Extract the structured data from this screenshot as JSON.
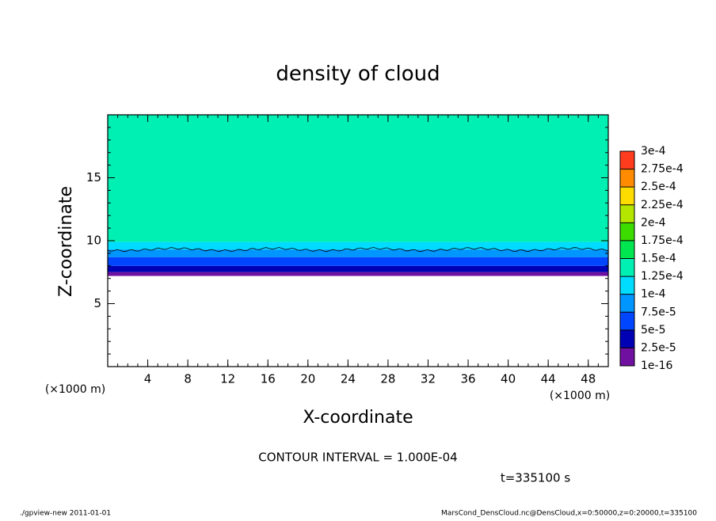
{
  "chart_data": {
    "type": "contour",
    "title": "density of cloud",
    "x_label": "X-coordinate",
    "y_label": "Z-coordinate",
    "x_unit": "(×1000 m)",
    "y_unit": "(×1000 m)",
    "annotation": "CONTOUR INTERVAL = 1.000E-04",
    "time_label": "t=335100 s",
    "footer_left": "./gpview-new   2011-01-01",
    "footer_right": "MarsCond_DensCloud.nc@DensCloud,x=0:50000,z=0:20000,t=335100",
    "xlim": [
      0,
      50
    ],
    "ylim": [
      0,
      20
    ],
    "xticks": [
      4,
      8,
      12,
      16,
      20,
      24,
      28,
      32,
      36,
      40,
      44,
      48
    ],
    "yticks": [
      5,
      10,
      15
    ],
    "profile": {
      "z": [
        7.2,
        7.5,
        8.0,
        8.7,
        9.3,
        9.9
      ],
      "values": [
        1e-05,
        3.5e-05,
        6e-05,
        8.5e-05,
        0.00011,
        0.000135
      ]
    },
    "colorbar_ticks": [
      1e-16,
      {
        "value": 2.5e-05,
        "label": "2.5e-5"
      },
      {
        "value": 5e-05,
        "label": "5e-5"
      },
      {
        "value": 7.5e-05,
        "label": "7.5e-5"
      },
      {
        "value": 0.0001,
        "label": "1e-4"
      },
      {
        "value": 0.000125,
        "label": "1.25e-4"
      },
      {
        "value": 0.00015,
        "label": "1.5e-4"
      },
      {
        "value": 0.000175,
        "label": "1.75e-4"
      },
      {
        "value": 0.0002,
        "label": "2e-4"
      },
      {
        "value": 0.000225,
        "label": "2.25e-4"
      },
      {
        "value": 0.00025,
        "label": "2.5e-4"
      },
      {
        "value": 0.000275,
        "label": "2.75e-4"
      },
      {
        "value": 0.0003,
        "label": "3e-4"
      }
    ],
    "colors": [
      "#7010a0",
      "#0000b4",
      "#0046ff",
      "#0096ff",
      "#00dcff",
      "#00f0b4",
      "#00e650",
      "#3cdc00",
      "#b4e600",
      "#ffdc00",
      "#ff8c00",
      "#ff3c1e"
    ]
  }
}
